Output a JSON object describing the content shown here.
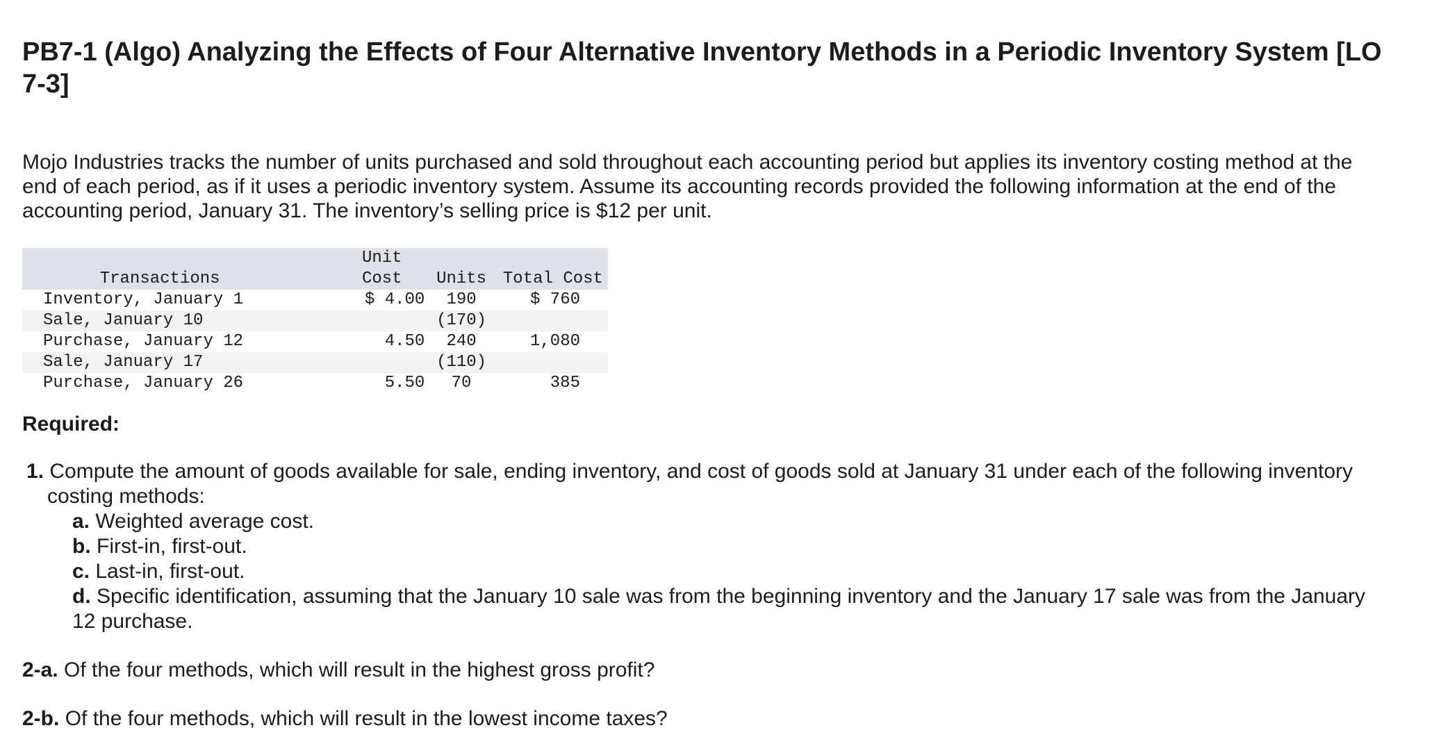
{
  "header": {
    "title": "PB7-1 (Algo) Analyzing the Effects of Four Alternative Inventory Methods in a Periodic Inventory System [LO 7-3]"
  },
  "intro": "Mojo Industries tracks the number of units purchased and sold throughout each accounting period but applies its inventory costing method at the end of each period, as if it uses a periodic inventory system. Assume its accounting records provided the following information at the end of the accounting period, January 31. The inventory’s selling price is $12 per unit.",
  "table": {
    "headers": [
      "Transactions",
      "Unit Cost",
      "Units",
      "Total Cost"
    ],
    "rows": [
      [
        "Inventory, January 1",
        "$ 4.00",
        "190",
        "$ 760"
      ],
      [
        "Sale, January 10",
        "",
        "(170)",
        ""
      ],
      [
        "Purchase, January 12",
        "4.50",
        "240",
        "1,080"
      ],
      [
        "Sale, January 17",
        "",
        "(110)",
        ""
      ],
      [
        "Purchase, January 26",
        "5.50",
        "70",
        "385"
      ]
    ]
  },
  "required": "Required:",
  "questions": [
    {
      "label": "1.",
      "text": "Compute the amount of goods available for sale, ending inventory, and cost of goods sold at January 31 under each of the following inventory costing methods:",
      "items": [
        {
          "label": "a.",
          "text": "Weighted average cost."
        },
        {
          "label": "b.",
          "text": "First-in, first-out."
        },
        {
          "label": "c.",
          "text": "Last-in, first-out."
        },
        {
          "label": "d.",
          "text": "Specific identification, assuming that the January 10 sale was from the beginning inventory and the January 17 sale was from the January 12 purchase."
        }
      ]
    },
    {
      "label": "2-a.",
      "text": "Of the four methods, which will result in the highest gross profit?"
    },
    {
      "label": "2-b.",
      "text": "Of the four methods, which will result in the lowest income taxes?"
    }
  ]
}
